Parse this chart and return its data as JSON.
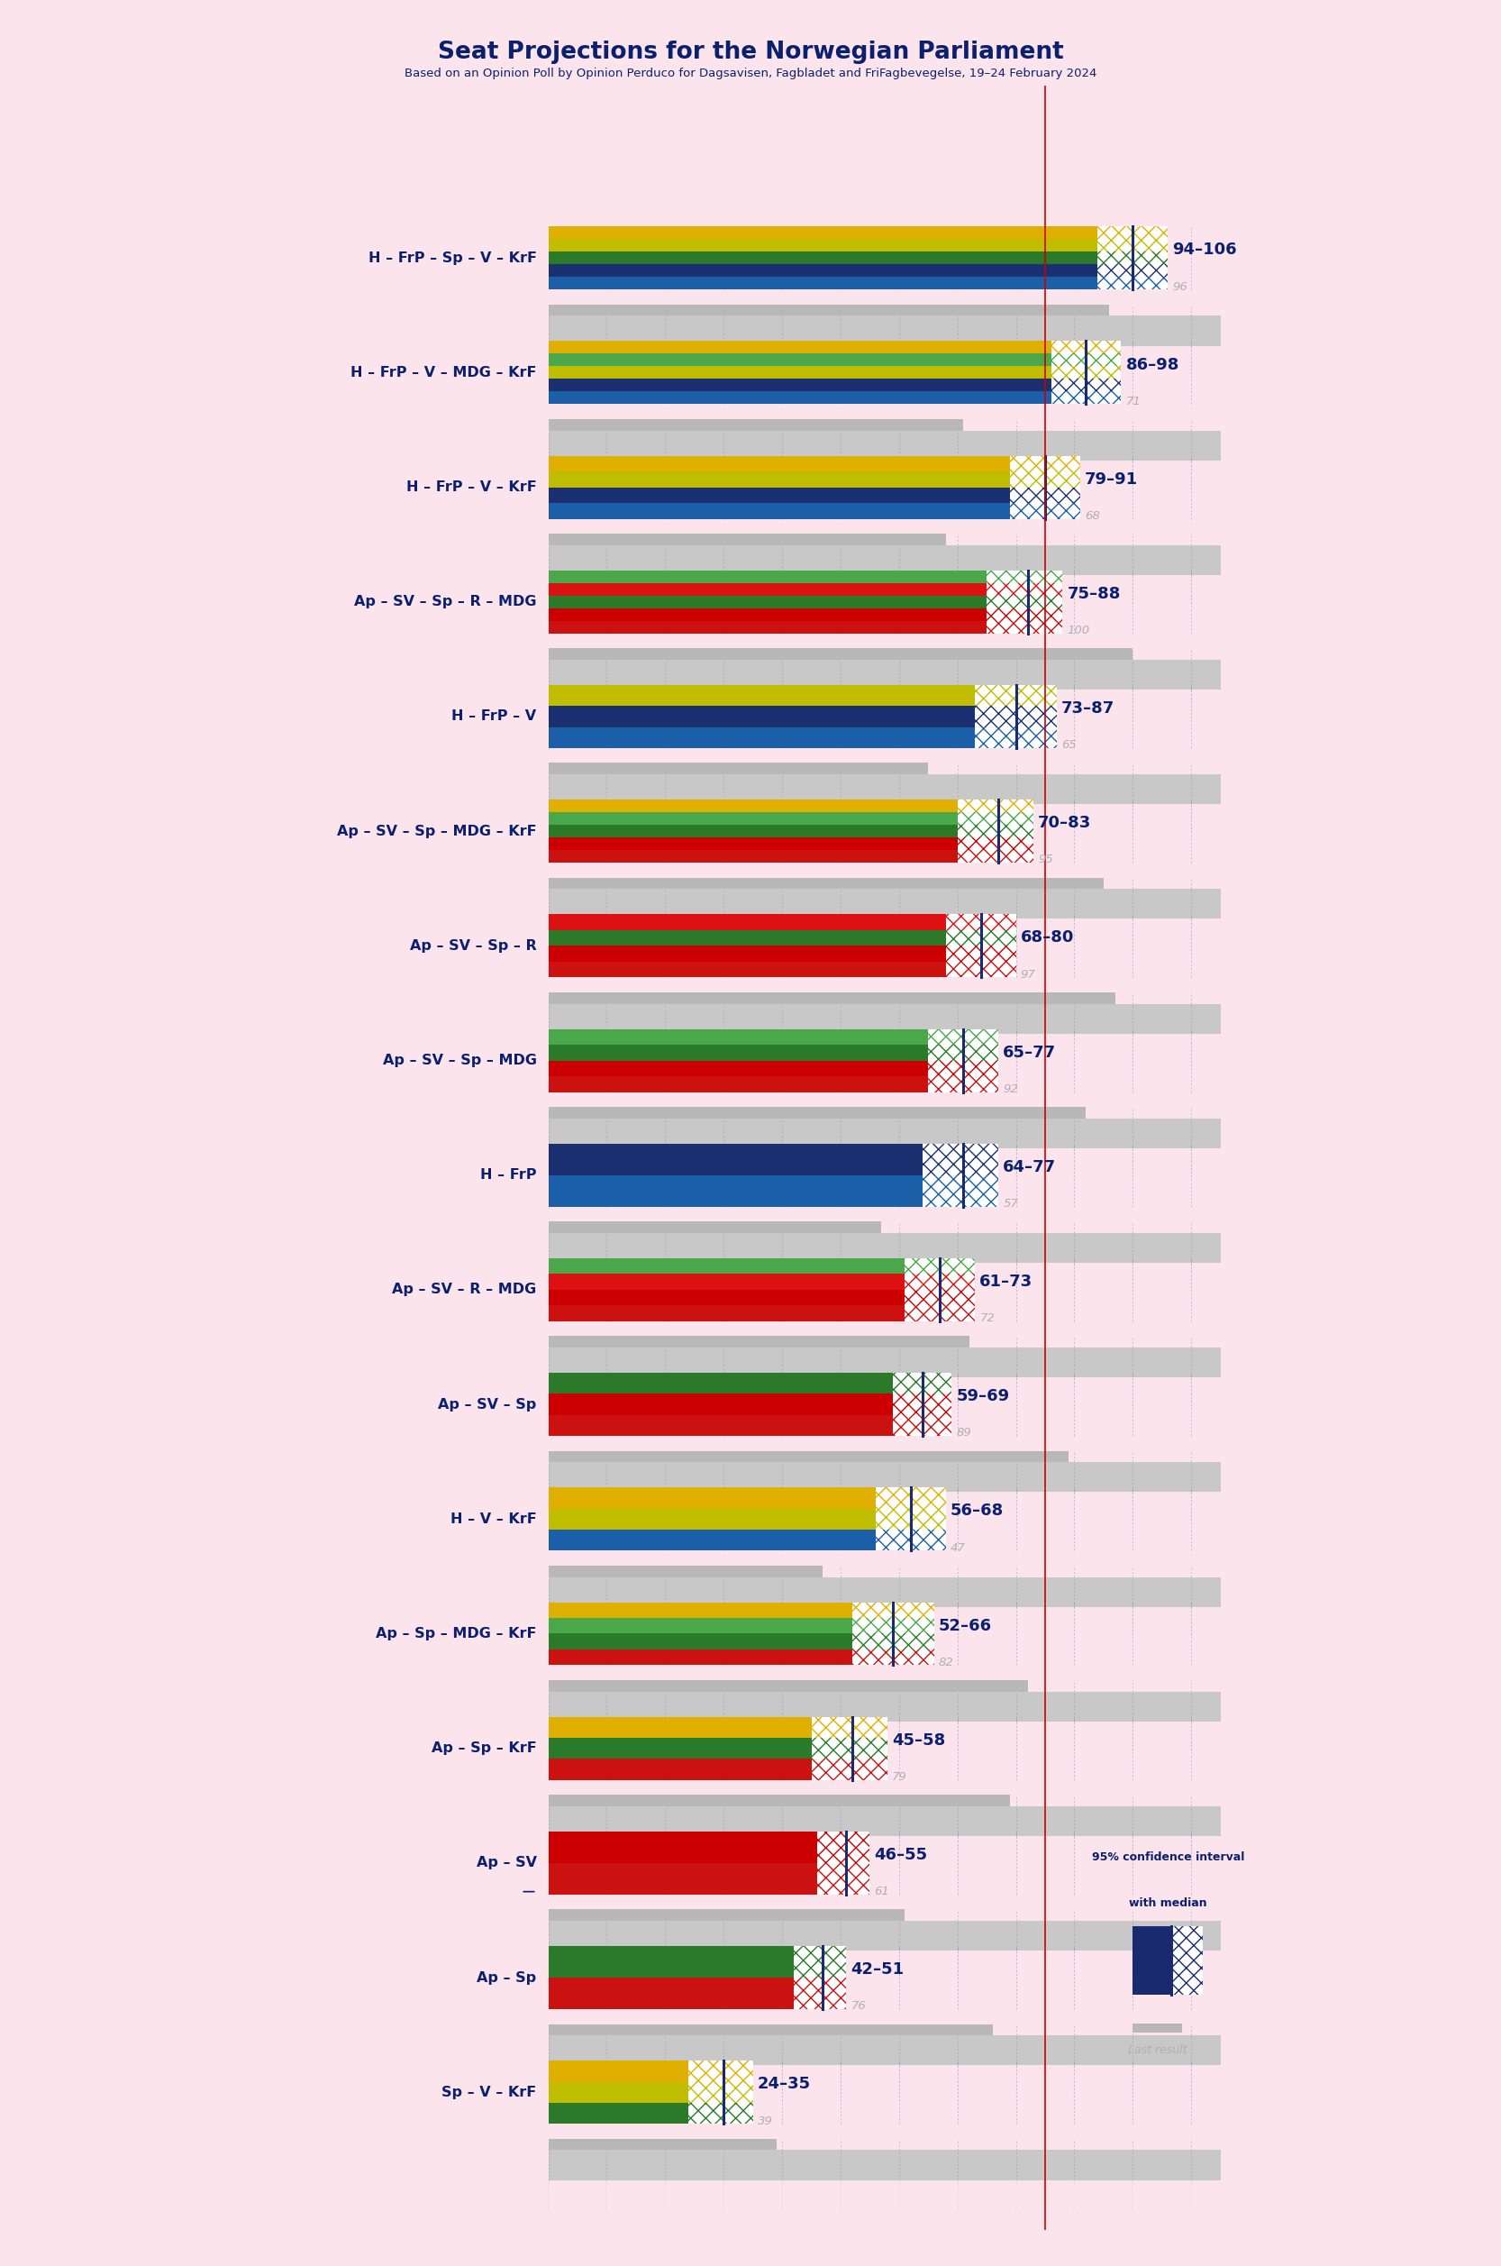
{
  "title": "Seat Projections for the Norwegian Parliament",
  "subtitle": "Based on an Opinion Poll by Opinion Perduco for Dagsavisen, Fagbladet and FriFagbevegelse, 19–24 February 2024",
  "background_color": "#fce4ec",
  "majority": 85,
  "coalitions": [
    {
      "label": "H – FrP – Sp – V – KrF",
      "ci_low": 94,
      "ci_high": 106,
      "median": 100,
      "last": 96,
      "parties": [
        "H",
        "FrP",
        "Sp",
        "V",
        "KrF"
      ]
    },
    {
      "label": "H – FrP – V – MDG – KrF",
      "ci_low": 86,
      "ci_high": 98,
      "median": 92,
      "last": 71,
      "parties": [
        "H",
        "FrP",
        "V",
        "MDG",
        "KrF"
      ]
    },
    {
      "label": "H – FrP – V – KrF",
      "ci_low": 79,
      "ci_high": 91,
      "median": 85,
      "last": 68,
      "parties": [
        "H",
        "FrP",
        "V",
        "KrF"
      ]
    },
    {
      "label": "Ap – SV – Sp – R – MDG",
      "ci_low": 75,
      "ci_high": 88,
      "median": 82,
      "last": 100,
      "parties": [
        "Ap",
        "SV",
        "Sp",
        "R",
        "MDG"
      ]
    },
    {
      "label": "H – FrP – V",
      "ci_low": 73,
      "ci_high": 87,
      "median": 80,
      "last": 65,
      "parties": [
        "H",
        "FrP",
        "V"
      ]
    },
    {
      "label": "Ap – SV – Sp – MDG – KrF",
      "ci_low": 70,
      "ci_high": 83,
      "median": 77,
      "last": 95,
      "parties": [
        "Ap",
        "SV",
        "Sp",
        "MDG",
        "KrF"
      ]
    },
    {
      "label": "Ap – SV – Sp – R",
      "ci_low": 68,
      "ci_high": 80,
      "median": 74,
      "last": 97,
      "parties": [
        "Ap",
        "SV",
        "Sp",
        "R"
      ]
    },
    {
      "label": "Ap – SV – Sp – MDG",
      "ci_low": 65,
      "ci_high": 77,
      "median": 71,
      "last": 92,
      "parties": [
        "Ap",
        "SV",
        "Sp",
        "MDG"
      ]
    },
    {
      "label": "H – FrP",
      "ci_low": 64,
      "ci_high": 77,
      "median": 71,
      "last": 57,
      "parties": [
        "H",
        "FrP"
      ]
    },
    {
      "label": "Ap – SV – R – MDG",
      "ci_low": 61,
      "ci_high": 73,
      "median": 67,
      "last": 72,
      "parties": [
        "Ap",
        "SV",
        "R",
        "MDG"
      ]
    },
    {
      "label": "Ap – SV – Sp",
      "ci_low": 59,
      "ci_high": 69,
      "median": 64,
      "last": 89,
      "parties": [
        "Ap",
        "SV",
        "Sp"
      ]
    },
    {
      "label": "H – V – KrF",
      "ci_low": 56,
      "ci_high": 68,
      "median": 62,
      "last": 47,
      "parties": [
        "H",
        "V",
        "KrF"
      ]
    },
    {
      "label": "Ap – Sp – MDG – KrF",
      "ci_low": 52,
      "ci_high": 66,
      "median": 59,
      "last": 82,
      "parties": [
        "Ap",
        "Sp",
        "MDG",
        "KrF"
      ]
    },
    {
      "label": "Ap – Sp – KrF",
      "ci_low": 45,
      "ci_high": 58,
      "median": 52,
      "last": 79,
      "parties": [
        "Ap",
        "Sp",
        "KrF"
      ]
    },
    {
      "label": "Ap – SV",
      "ci_low": 46,
      "ci_high": 55,
      "median": 51,
      "last": 61,
      "parties": [
        "Ap",
        "SV"
      ],
      "underline": true
    },
    {
      "label": "Ap – Sp",
      "ci_low": 42,
      "ci_high": 51,
      "median": 47,
      "last": 76,
      "parties": [
        "Ap",
        "Sp"
      ]
    },
    {
      "label": "Sp – V – KrF",
      "ci_low": 24,
      "ci_high": 35,
      "median": 30,
      "last": 39,
      "parties": [
        "Sp",
        "V",
        "KrF"
      ]
    }
  ],
  "party_colors": {
    "H": "#1a5fa8",
    "FrP": "#1a3070",
    "Sp": "#2a7a2a",
    "V": "#c0bc00",
    "KrF": "#e0b000",
    "Ap": "#cc1111",
    "SV": "#cc0000",
    "R": "#dd1111",
    "MDG": "#4aa84a"
  },
  "grid_color": "#a8a8a8",
  "last_bar_color": "#b8b8b8",
  "majority_color": "#cc0000",
  "label_color": "#0a1f6e",
  "last_label_color": "#b0b0b0",
  "ci_label_color": "#0a1f6e",
  "legend_ci_text": "95% confidence interval\nwith median",
  "legend_last_text": "Last result"
}
